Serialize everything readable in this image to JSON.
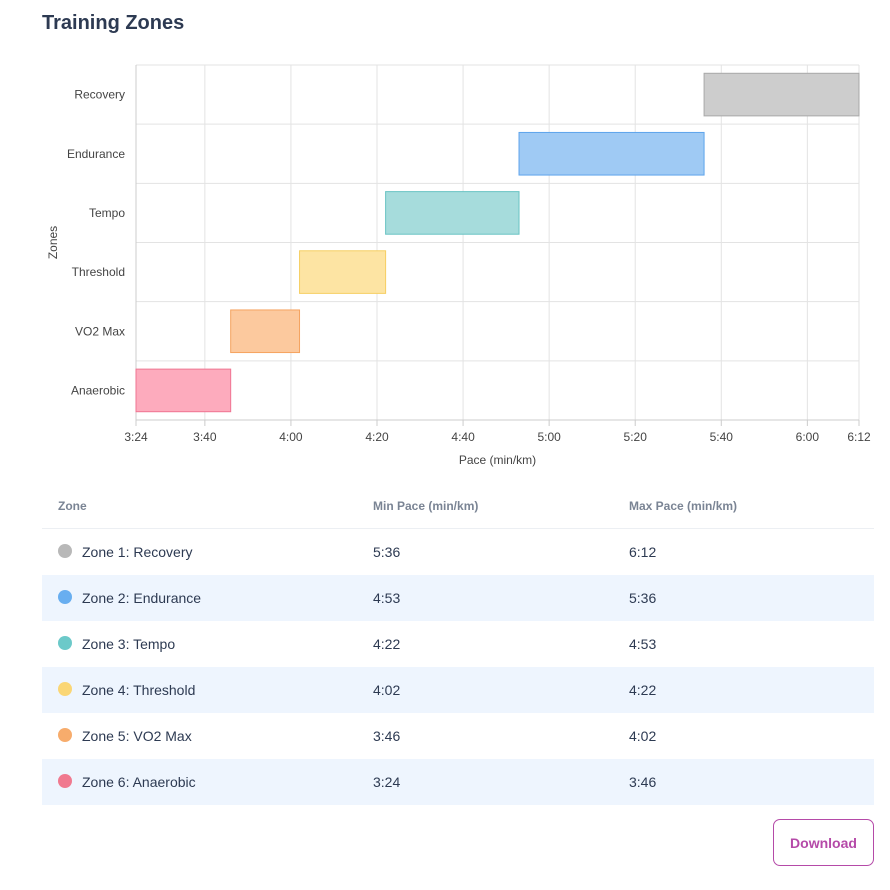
{
  "page": {
    "title": "Training Zones"
  },
  "chart_data": {
    "type": "bar",
    "orientation": "horizontal-floating",
    "xlabel": "Pace (min/km)",
    "ylabel": "Zones",
    "categories": [
      "Recovery",
      "Endurance",
      "Tempo",
      "Threshold",
      "VO2 Max",
      "Anaerobic"
    ],
    "ranges": [
      {
        "zone": "Recovery",
        "min": "5:36",
        "max": "6:12",
        "fill": "#cdcdcd",
        "stroke": "#a8a8a8"
      },
      {
        "zone": "Endurance",
        "min": "4:53",
        "max": "5:36",
        "fill": "#9fcaf4",
        "stroke": "#5ea4ec"
      },
      {
        "zone": "Tempo",
        "min": "4:22",
        "max": "4:53",
        "fill": "#a6dcdc",
        "stroke": "#68c3c3"
      },
      {
        "zone": "Threshold",
        "min": "4:02",
        "max": "4:22",
        "fill": "#fde4a3",
        "stroke": "#f6ce62"
      },
      {
        "zone": "VO2 Max",
        "min": "3:46",
        "max": "4:02",
        "fill": "#fcc99e",
        "stroke": "#f5a35f"
      },
      {
        "zone": "Anaerobic",
        "min": "3:24",
        "max": "3:46",
        "fill": "#fdabbd",
        "stroke": "#ef7592"
      }
    ],
    "xlim": [
      "3:24",
      "6:12"
    ],
    "xticks": [
      "3:24",
      "3:40",
      "4:00",
      "4:20",
      "4:40",
      "5:00",
      "5:20",
      "5:40",
      "6:00",
      "6:12"
    ],
    "grid": true,
    "legend": "none"
  },
  "table": {
    "headers": [
      "Zone",
      "Min Pace (min/km)",
      "Max Pace (min/km)"
    ],
    "rows": [
      {
        "zone": "Zone 1: Recovery",
        "min": "5:36",
        "max": "6:12",
        "color": "#b8b8b8"
      },
      {
        "zone": "Zone 2: Endurance",
        "min": "4:53",
        "max": "5:36",
        "color": "#68aef0"
      },
      {
        "zone": "Zone 3: Tempo",
        "min": "4:22",
        "max": "4:53",
        "color": "#6cc9c9"
      },
      {
        "zone": "Zone 4: Threshold",
        "min": "4:02",
        "max": "4:22",
        "color": "#fad675"
      },
      {
        "zone": "Zone 5: VO2 Max",
        "min": "3:46",
        "max": "4:02",
        "color": "#f7ac6c"
      },
      {
        "zone": "Zone 6: Anaerobic",
        "min": "3:24",
        "max": "3:46",
        "color": "#f0798f"
      }
    ]
  },
  "actions": {
    "download_label": "Download"
  }
}
